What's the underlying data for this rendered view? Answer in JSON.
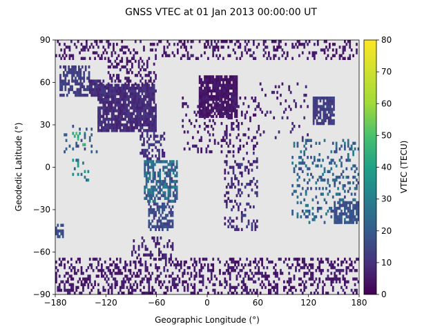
{
  "chart_data": {
    "type": "heatmap",
    "title": "GNSS VTEC at 01 Jan 2013 00:00:00 UT",
    "xlabel": "Geographic Longitude (°)",
    "ylabel": "Geodedic Latitude (°)",
    "xlim": [
      -180,
      180
    ],
    "ylim": [
      -90,
      90
    ],
    "x_ticks": [
      -180,
      -120,
      -60,
      0,
      60,
      120,
      180
    ],
    "y_ticks": [
      -90,
      -60,
      -30,
      0,
      30,
      60,
      90
    ],
    "x_tick_labels": [
      "−180",
      "−120",
      "−60",
      "0",
      "60",
      "120",
      "180"
    ],
    "y_tick_labels": [
      "−90",
      "−60",
      "−30",
      "0",
      "30",
      "60",
      "90"
    ],
    "background_color": "#e6e6e6",
    "colormap": "viridis",
    "colorbar": {
      "label": "VTEC (TECU)",
      "range": [
        0,
        80
      ],
      "ticks": [
        0,
        10,
        20,
        30,
        40,
        50,
        60,
        70,
        80
      ],
      "tick_labels": [
        "0",
        "10",
        "20",
        "30",
        "40",
        "50",
        "60",
        "70",
        "80"
      ]
    },
    "regions": [
      {
        "lon": [
          -180,
          180
        ],
        "lat": [
          76,
          90
        ],
        "vtec": [
          2,
          8
        ],
        "density": 0.25
      },
      {
        "lon": [
          -175,
          -140
        ],
        "lat": [
          50,
          72
        ],
        "vtec": [
          10,
          16
        ],
        "density": 0.55
      },
      {
        "lon": [
          -130,
          -60
        ],
        "lat": [
          25,
          58
        ],
        "vtec": [
          6,
          12
        ],
        "density": 0.85
      },
      {
        "lon": [
          -140,
          -120
        ],
        "lat": [
          50,
          62
        ],
        "vtec": [
          6,
          12
        ],
        "density": 0.7
      },
      {
        "lon": [
          -120,
          -60
        ],
        "lat": [
          58,
          75
        ],
        "vtec": [
          3,
          8
        ],
        "density": 0.3
      },
      {
        "lon": [
          -80,
          -50
        ],
        "lat": [
          5,
          25
        ],
        "vtec": [
          6,
          14
        ],
        "density": 0.35
      },
      {
        "lon": [
          -75,
          -35
        ],
        "lat": [
          -25,
          5
        ],
        "vtec": [
          14,
          32
        ],
        "density": 0.55
      },
      {
        "lon": [
          -70,
          -40
        ],
        "lat": [
          -45,
          -25
        ],
        "vtec": [
          12,
          20
        ],
        "density": 0.6
      },
      {
        "lon": [
          -160,
          -140
        ],
        "lat": [
          -10,
          5
        ],
        "vtec": [
          20,
          40
        ],
        "density": 0.25
      },
      {
        "lon": [
          -160,
          -145
        ],
        "lat": [
          15,
          25
        ],
        "vtec": [
          35,
          50
        ],
        "density": 0.3
      },
      {
        "lon": [
          -10,
          35
        ],
        "lat": [
          35,
          65
        ],
        "vtec": [
          2,
          6
        ],
        "density": 0.85
      },
      {
        "lon": [
          -30,
          60
        ],
        "lat": [
          10,
          50
        ],
        "vtec": [
          3,
          8
        ],
        "density": 0.2
      },
      {
        "lon": [
          20,
          60
        ],
        "lat": [
          -45,
          10
        ],
        "vtec": [
          4,
          14
        ],
        "density": 0.25
      },
      {
        "lon": [
          60,
          120
        ],
        "lat": [
          20,
          60
        ],
        "vtec": [
          4,
          10
        ],
        "density": 0.12
      },
      {
        "lon": [
          125,
          150
        ],
        "lat": [
          30,
          50
        ],
        "vtec": [
          10,
          16
        ],
        "density": 0.75
      },
      {
        "lon": [
          100,
          180
        ],
        "lat": [
          -40,
          20
        ],
        "vtec": [
          14,
          30
        ],
        "density": 0.22
      },
      {
        "lon": [
          150,
          180
        ],
        "lat": [
          -40,
          -25
        ],
        "vtec": [
          15,
          20
        ],
        "density": 0.7
      },
      {
        "lon": [
          -180,
          180
        ],
        "lat": [
          -90,
          -65
        ],
        "vtec": [
          2,
          8
        ],
        "density": 0.35
      },
      {
        "lon": [
          -90,
          -40
        ],
        "lat": [
          -65,
          -50
        ],
        "vtec": [
          4,
          10
        ],
        "density": 0.25
      },
      {
        "lon": [
          -180,
          -170
        ],
        "lat": [
          -50,
          -40
        ],
        "vtec": [
          14,
          20
        ],
        "density": 0.6
      },
      {
        "lon": [
          -170,
          -130
        ],
        "lat": [
          10,
          30
        ],
        "vtec": [
          15,
          25
        ],
        "density": 0.15
      }
    ]
  }
}
